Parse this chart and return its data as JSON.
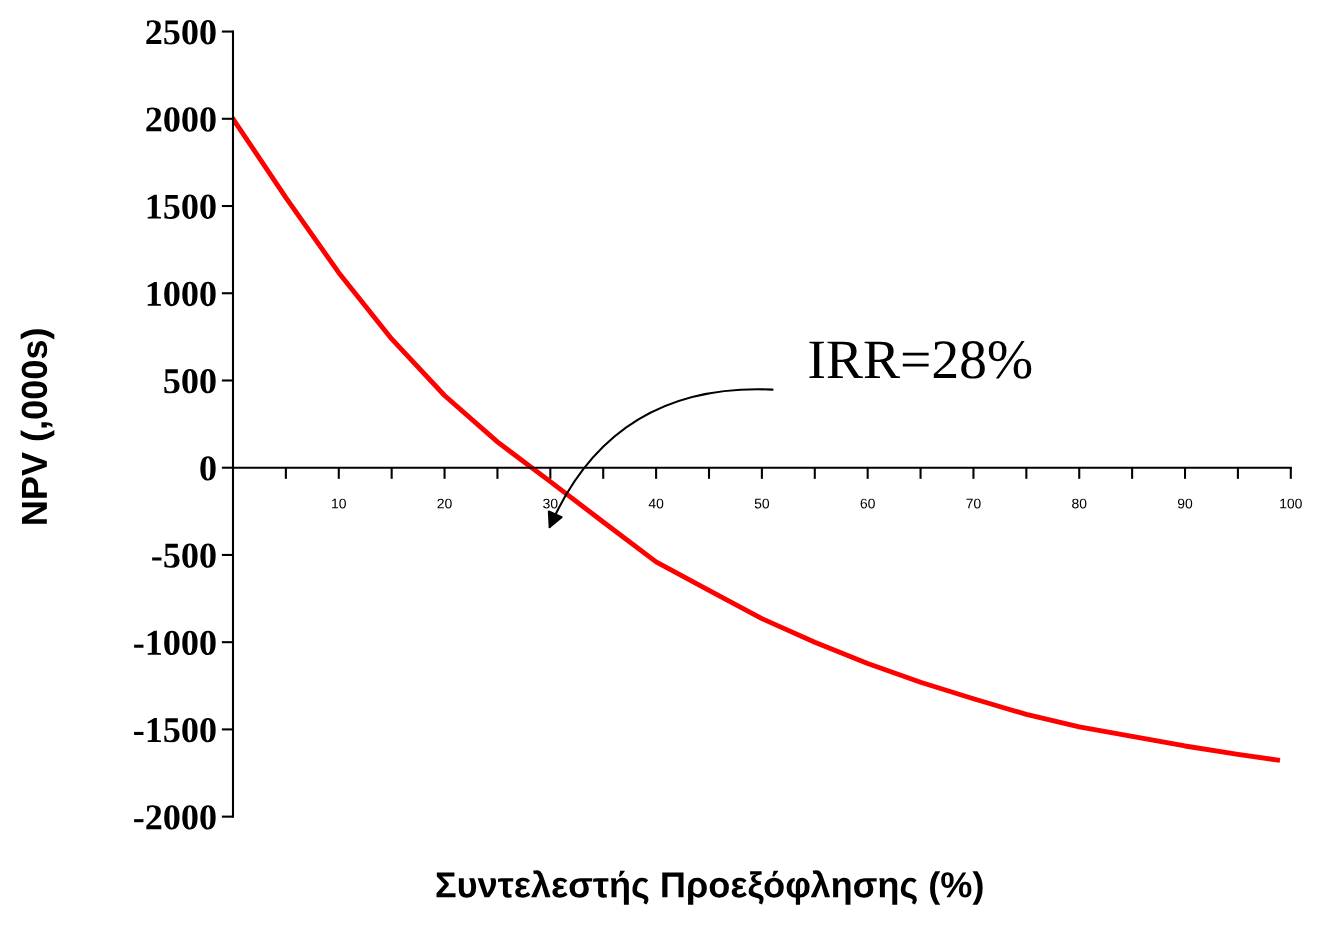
{
  "chart_data": {
    "type": "line",
    "xlabel": "Συντελεστής Προεξόφλησης (%)",
    "ylabel": "NPV (,000s)",
    "x": [
      0,
      5,
      10,
      15,
      20,
      25,
      30,
      35,
      40,
      45,
      50,
      55,
      60,
      65,
      70,
      75,
      80,
      85,
      90,
      95,
      98.75
    ],
    "series": [
      {
        "color": "#ff0000",
        "values": [
          2000,
          1548,
          1118,
          738,
          414,
          148,
          -80,
          -311,
          -540,
          -703,
          -865,
          -1000,
          -1122,
          -1230,
          -1324,
          -1414,
          -1486,
          -1540,
          -1595,
          -1643,
          -1676
        ]
      }
    ],
    "xlim": [
      0,
      100
    ],
    "xticks": [
      {
        "value": 5,
        "label": null
      },
      10,
      {
        "value": 15,
        "label": null
      },
      20,
      {
        "value": 25,
        "label": null
      },
      30,
      {
        "value": 35,
        "label": null
      },
      40,
      {
        "value": 45,
        "label": null
      },
      50,
      {
        "value": 55,
        "label": null
      },
      60,
      {
        "value": 65,
        "label": null
      },
      70,
      {
        "value": 75,
        "label": null
      },
      80,
      {
        "value": 85,
        "label": null
      },
      90,
      {
        "value": 95,
        "label": null
      },
      100
    ],
    "ylim": [
      -2000,
      2500
    ],
    "yticks": [
      -2000,
      -1500,
      -1000,
      -500,
      0,
      500,
      1000,
      1500,
      2000,
      2500
    ],
    "annotations": [
      "IRR=28%"
    ],
    "grid": false,
    "legend": false,
    "marker": "none",
    "line_style": "solid"
  }
}
